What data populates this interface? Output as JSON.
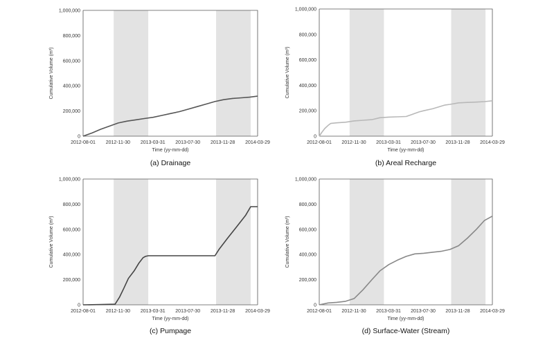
{
  "figure": {
    "panels_count": 4
  },
  "chart_data": [
    {
      "type": "line",
      "caption": "(a) Drainage",
      "xlabel": "Time (yy-mm-dd)",
      "ylabel": "Cumulative Volume (m³)",
      "ylim": [
        0,
        1000000
      ],
      "xlim": [
        "2012-08-01",
        "2014-03-29"
      ],
      "x_ticks": [
        "2012-08-01",
        "2012-11-30",
        "2013-03-31",
        "2013-07-30",
        "2013-11-28",
        "2014-03-29"
      ],
      "y_ticks": [
        "0",
        "200,000",
        "400,000",
        "600,000",
        "800,000",
        "1,000,000"
      ],
      "shaded_periods": [
        [
          "2012-11-15",
          "2013-03-15"
        ],
        [
          "2013-11-05",
          "2014-03-05"
        ]
      ],
      "line_color": "#555555",
      "series": [
        {
          "x": [
            "2012-08-01",
            "2012-09-01",
            "2012-10-01",
            "2012-11-01",
            "2012-12-01",
            "2013-01-01",
            "2013-02-01",
            "2013-03-01",
            "2013-04-01",
            "2013-05-01",
            "2013-06-01",
            "2013-07-01",
            "2013-08-01",
            "2013-09-01",
            "2013-10-01",
            "2013-11-01",
            "2013-12-01",
            "2014-01-01",
            "2014-02-01",
            "2014-03-01",
            "2014-03-29"
          ],
          "y": [
            0,
            25000,
            55000,
            80000,
            105000,
            120000,
            130000,
            140000,
            150000,
            165000,
            180000,
            195000,
            215000,
            235000,
            255000,
            275000,
            290000,
            300000,
            305000,
            310000,
            318000
          ]
        }
      ]
    },
    {
      "type": "line",
      "caption": "(b) Areal Recharge",
      "xlabel": "Time (yy-mm-dd)",
      "ylabel": "Cumulative Volume (m³)",
      "ylim": [
        0,
        1000000
      ],
      "xlim": [
        "2012-08-01",
        "2014-03-29"
      ],
      "x_ticks": [
        "2012-08-01",
        "2012-11-30",
        "2013-03-31",
        "2013-07-30",
        "2013-11-28",
        "2014-03-29"
      ],
      "y_ticks": [
        "0",
        "200,000",
        "400,000",
        "600,000",
        "800,000",
        "1,000,000"
      ],
      "shaded_periods": [
        [
          "2012-11-15",
          "2013-03-15"
        ],
        [
          "2013-11-05",
          "2014-03-05"
        ]
      ],
      "line_color": "#b8b8b8",
      "series": [
        {
          "x": [
            "2012-08-01",
            "2012-08-10",
            "2012-08-20",
            "2012-09-01",
            "2012-09-10",
            "2012-10-01",
            "2012-11-01",
            "2012-12-01",
            "2013-01-01",
            "2013-02-01",
            "2013-03-01",
            "2013-04-01",
            "2013-05-01",
            "2013-06-01",
            "2013-06-20",
            "2013-07-15",
            "2013-08-01",
            "2013-09-01",
            "2013-09-15",
            "2013-10-15",
            "2013-11-01",
            "2013-12-01",
            "2014-01-01",
            "2014-02-01",
            "2014-03-01",
            "2014-03-29"
          ],
          "y": [
            0,
            30000,
            60000,
            85000,
            100000,
            105000,
            110000,
            120000,
            125000,
            130000,
            145000,
            150000,
            152000,
            155000,
            170000,
            190000,
            200000,
            215000,
            225000,
            245000,
            250000,
            262000,
            265000,
            268000,
            272000,
            278000
          ]
        }
      ]
    },
    {
      "type": "line",
      "caption": "(c) Pumpage",
      "xlabel": "Time (yy-mm-dd)",
      "ylabel": "Cumulative Volume (m³)",
      "ylim": [
        0,
        1000000
      ],
      "xlim": [
        "2012-08-01",
        "2014-03-29"
      ],
      "x_ticks": [
        "2012-08-01",
        "2012-11-30",
        "2013-03-31",
        "2013-07-30",
        "2013-11-28",
        "2014-03-29"
      ],
      "y_ticks": [
        "0",
        "200,000",
        "400,000",
        "600,000",
        "800,000",
        "1,000,000"
      ],
      "shaded_periods": [
        [
          "2012-11-15",
          "2013-03-15"
        ],
        [
          "2013-11-05",
          "2014-03-05"
        ]
      ],
      "line_color": "#444444",
      "series": [
        {
          "x": [
            "2012-08-01",
            "2012-10-01",
            "2012-11-20",
            "2012-12-05",
            "2012-12-20",
            "2013-01-05",
            "2013-01-25",
            "2013-02-10",
            "2013-02-25",
            "2013-03-05",
            "2013-03-15",
            "2013-04-01",
            "2013-07-01",
            "2013-10-01",
            "2013-11-01",
            "2013-11-15",
            "2013-12-15",
            "2014-01-15",
            "2014-02-15",
            "2014-03-05",
            "2014-03-29"
          ],
          "y": [
            0,
            2000,
            5000,
            60000,
            130000,
            210000,
            270000,
            330000,
            375000,
            385000,
            390000,
            390000,
            390000,
            390000,
            390000,
            440000,
            530000,
            620000,
            710000,
            780000,
            780000
          ]
        }
      ]
    },
    {
      "type": "line",
      "caption": "(d) Surface-Water (Stream)",
      "xlabel": "Time (yy-mm-dd)",
      "ylabel": "Cumulative Volume (m³)",
      "ylim": [
        0,
        1000000
      ],
      "xlim": [
        "2012-08-01",
        "2014-03-29"
      ],
      "x_ticks": [
        "2012-08-01",
        "2012-11-30",
        "2013-03-31",
        "2013-07-30",
        "2013-11-28",
        "2014-03-29"
      ],
      "y_ticks": [
        "0",
        "200,000",
        "400,000",
        "600,000",
        "800,000",
        "1,000,000"
      ],
      "shaded_periods": [
        [
          "2012-11-15",
          "2013-03-15"
        ],
        [
          "2013-11-05",
          "2014-03-05"
        ]
      ],
      "line_color": "#888888",
      "series": [
        {
          "x": [
            "2012-08-01",
            "2012-09-01",
            "2012-10-01",
            "2012-11-01",
            "2012-12-01",
            "2013-01-01",
            "2013-02-01",
            "2013-03-01",
            "2013-04-01",
            "2013-05-01",
            "2013-06-01",
            "2013-07-01",
            "2013-08-01",
            "2013-09-01",
            "2013-10-01",
            "2013-11-01",
            "2013-12-01",
            "2014-01-01",
            "2014-02-01",
            "2014-03-01",
            "2014-03-29"
          ],
          "y": [
            0,
            15000,
            20000,
            28000,
            50000,
            120000,
            200000,
            270000,
            320000,
            355000,
            385000,
            405000,
            410000,
            418000,
            425000,
            440000,
            470000,
            530000,
            600000,
            670000,
            705000
          ]
        }
      ]
    }
  ]
}
